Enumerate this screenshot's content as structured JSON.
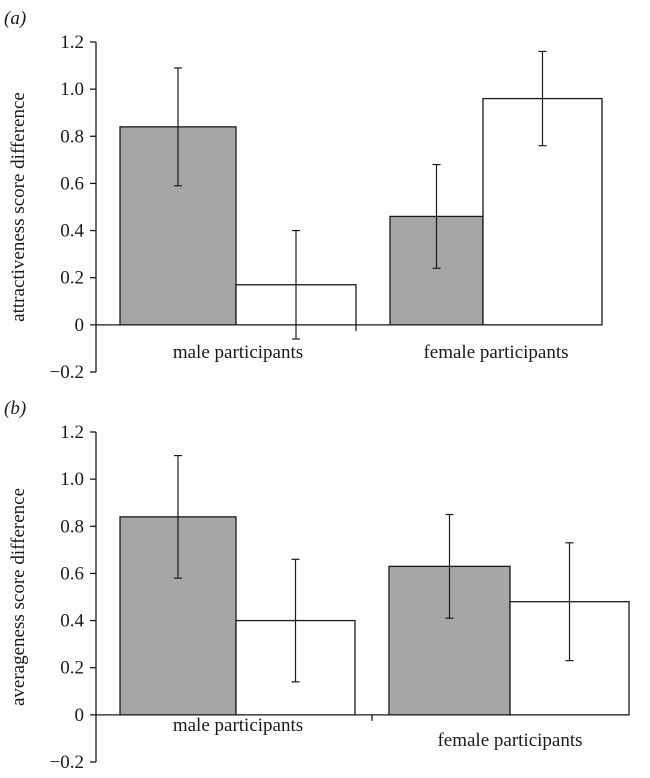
{
  "chart_data": [
    {
      "type": "bar",
      "panel_label": "(a)",
      "ylabel": "attractiveness score difference",
      "categories": [
        "male participants",
        "female participants"
      ],
      "ylim": [
        -0.2,
        1.2
      ],
      "yticks": [
        "-0.2",
        "0",
        "0.2",
        "0.4",
        "0.6",
        "0.8",
        "1.0",
        "1.2"
      ],
      "series": [
        {
          "color": "#a6a6a6",
          "values": [
            0.84,
            0.46
          ],
          "error": [
            0.25,
            0.22
          ]
        },
        {
          "color": "#ffffff",
          "values": [
            0.17,
            0.96
          ],
          "error": [
            0.23,
            0.2
          ]
        }
      ],
      "grid": false,
      "legend": "none"
    },
    {
      "type": "bar",
      "panel_label": "(b)",
      "ylabel": "averageness score difference",
      "categories": [
        "male participants",
        "female participants"
      ],
      "ylim": [
        -0.2,
        1.2
      ],
      "yticks": [
        "-0.2",
        "0",
        "0.2",
        "0.4",
        "0.6",
        "0.8",
        "1.0",
        "1.2"
      ],
      "series": [
        {
          "color": "#a6a6a6",
          "values": [
            0.84,
            0.63
          ],
          "error": [
            0.26,
            0.22
          ]
        },
        {
          "color": "#ffffff",
          "values": [
            0.4,
            0.48
          ],
          "error": [
            0.26,
            0.25
          ]
        }
      ],
      "grid": false,
      "legend": "none"
    }
  ]
}
